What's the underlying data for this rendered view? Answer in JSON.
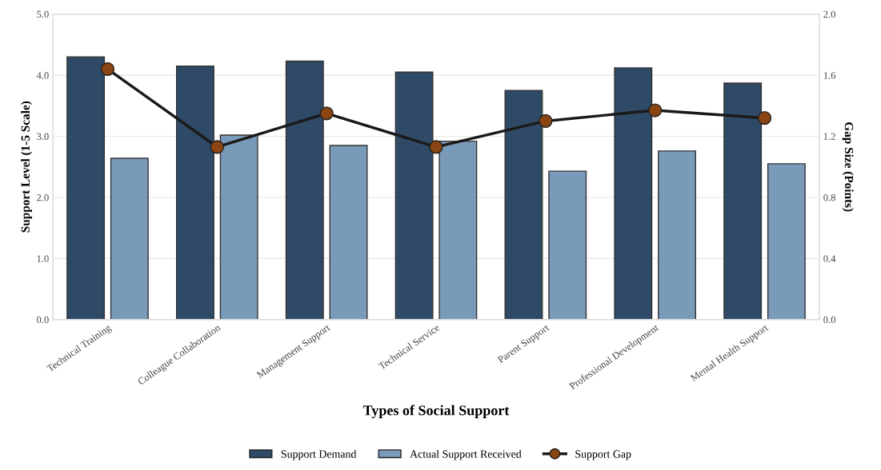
{
  "chart_data": {
    "type": "bar",
    "xlabel": "Types of Social Support",
    "ylabel": "Support Level (1-5 Scale)",
    "y2label": "Gap Size (Points)",
    "categories": [
      "Technical Training",
      "Colleague Collaboration",
      "Management Support",
      "Technical Service",
      "Parent Support",
      "Professional Development",
      "Mental Health Support"
    ],
    "series": [
      {
        "name": "Support Demand",
        "color": "#2e4a66",
        "values": [
          4.3,
          4.15,
          4.23,
          4.05,
          3.75,
          4.12,
          3.87
        ]
      },
      {
        "name": "Actual Support Received",
        "color": "#7a9aba",
        "values": [
          2.64,
          3.02,
          2.85,
          2.92,
          2.43,
          2.76,
          2.55
        ]
      },
      {
        "name": "Support Gap",
        "type": "line",
        "axis": "y2",
        "color": "#1a1a1a",
        "colors": [
          "#8b4513",
          "#8b4513",
          "#8b4513",
          "#8b4513",
          "#8b4513",
          "#8b4513",
          "#8b4513"
        ],
        "marker": "circle",
        "values": [
          1.64,
          1.13,
          1.35,
          1.13,
          1.3,
          1.37,
          1.32
        ]
      }
    ],
    "ylim": [
      0,
      5
    ],
    "yticks": [
      {
        "value": 0,
        "label": "0.0"
      },
      {
        "value": 1,
        "label": "1.0"
      },
      {
        "value": 2,
        "label": "2.0"
      },
      {
        "value": 3,
        "label": "3.0"
      },
      {
        "value": 4,
        "label": "4.0"
      },
      {
        "value": 5,
        "label": "5.0"
      }
    ],
    "y2lim": [
      0,
      2
    ],
    "y2ticks": [
      {
        "value": 0,
        "label": "0.0"
      },
      {
        "value": 0.4,
        "label": "0.4"
      },
      {
        "value": 0.8,
        "label": "0.8"
      },
      {
        "value": 1.2,
        "label": "1.2"
      },
      {
        "value": 1.6,
        "label": "1.6"
      },
      {
        "value": 2,
        "label": "2.0"
      }
    ],
    "grid": "y",
    "legend": "bottom"
  }
}
